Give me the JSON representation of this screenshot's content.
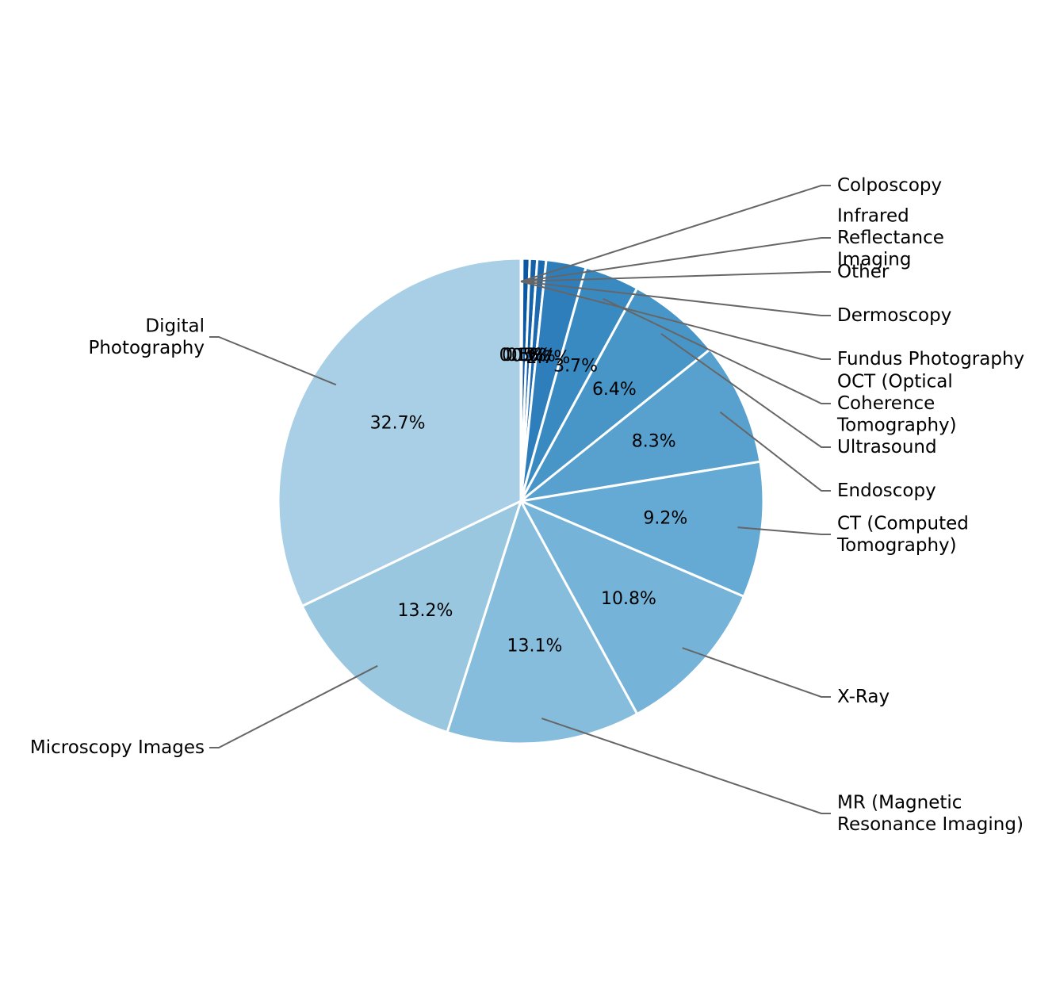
{
  "chart_data": {
    "type": "pie",
    "start_angle_deg": 90,
    "direction": "clockwise",
    "slices": [
      {
        "label": "Colposcopy",
        "value": 0.1,
        "pct_label": "0.1%",
        "color": "#08519c"
      },
      {
        "label": "Infrared Reflectance Imaging",
        "value": 0.5,
        "pct_label": "0.5%",
        "color": "#0b58a2"
      },
      {
        "label": "Other",
        "value": 0.5,
        "pct_label": "0.5%",
        "color": "#1361a9"
      },
      {
        "label": "Dermoscopy",
        "value": 0.6,
        "pct_label": "0.6%",
        "color": "#1b69af"
      },
      {
        "label": "Fundus Photography",
        "value": 2.7,
        "pct_label": "2.7%",
        "color": "#2f7ebc"
      },
      {
        "label": "OCT (Optical Coherence Tomography)",
        "value": 3.7,
        "pct_label": "3.7%",
        "color": "#3a8ac2"
      },
      {
        "label": "Ultrasound",
        "value": 6.4,
        "pct_label": "6.4%",
        "color": "#4896c8"
      },
      {
        "label": "Endoscopy",
        "value": 8.3,
        "pct_label": "8.3%",
        "color": "#58a1cf"
      },
      {
        "label": "CT (Computed Tomography)",
        "value": 9.2,
        "pct_label": "9.2%",
        "color": "#65aad4"
      },
      {
        "label": "X-Ray",
        "value": 10.8,
        "pct_label": "10.8%",
        "color": "#75b3d8"
      },
      {
        "label": "MR (Magnetic Resonance Imaging)",
        "value": 13.1,
        "pct_label": "13.1%",
        "color": "#87bddc"
      },
      {
        "label": "Microscopy Images",
        "value": 13.2,
        "pct_label": "13.2%",
        "color": "#99c7e0"
      },
      {
        "label": "Digital Photography",
        "value": 32.7,
        "pct_label": "32.7%",
        "color": "#a8cfe5"
      }
    ]
  }
}
